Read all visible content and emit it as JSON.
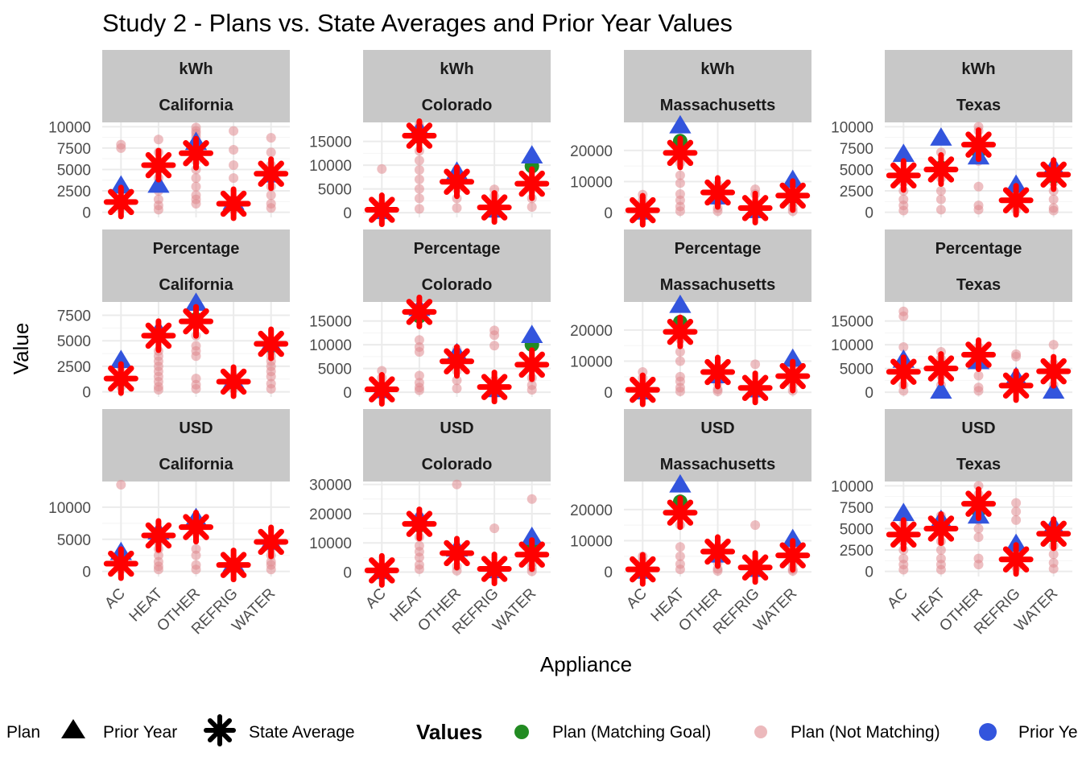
{
  "chart_data": {
    "type": "scatter",
    "title": "Study 2 - Plans vs. State Averages and Prior Year Values",
    "xlabel": "Appliance",
    "ylabel": "Value",
    "categories": [
      "AC",
      "HEAT",
      "OTHER",
      "REFRIG",
      "WATER"
    ],
    "colors": {
      "plan_matching": "#228b22",
      "plan_not_matching": "#e08a90",
      "prior_year": "#3355dd",
      "state_average": "#ff0000",
      "strip_background": "#c8c8c8"
    },
    "legend": {
      "shape": {
        "items": [
          "Plan",
          "Prior Year",
          "State Average"
        ]
      },
      "values": {
        "title": "Values",
        "items": [
          "Plan (Matching Goal)",
          "Plan (Not Matching)",
          "Prior Ye"
        ]
      },
      "placement": "bottom"
    },
    "grid": true,
    "panels": [
      {
        "metric": "kWh",
        "state": "California",
        "ylim": [
          -600,
          10500
        ],
        "yticks": [
          "0",
          "2500",
          "5000",
          "7500",
          "10000"
        ],
        "ytick_values": [
          0,
          2500,
          5000,
          7500,
          10000
        ],
        "state_average": [
          1200,
          5500,
          6900,
          1000,
          4500
        ],
        "prior_year": [
          3100,
          3200,
          8200,
          1200,
          4400
        ],
        "plan_matching": [
          1100,
          5400,
          7100,
          900,
          4400
        ],
        "plan_not_matching": [
          [
            7900,
            7500,
            1400,
            900,
            500
          ],
          [
            8500,
            7000,
            5000,
            4000,
            2500,
            1500,
            800,
            300
          ],
          [
            9900,
            9500,
            9200,
            8800,
            8000,
            6000,
            5000,
            4000,
            3000,
            2000,
            1500,
            1000
          ],
          [
            9500,
            7300,
            5500,
            4000,
            1500,
            300
          ],
          [
            8700,
            7000,
            5500,
            3000,
            2000,
            1000,
            500
          ]
        ]
      },
      {
        "metric": "kWh",
        "state": "Colorado",
        "ylim": [
          -1000,
          19000
        ],
        "yticks": [
          "0",
          "5000",
          "10000",
          "15000"
        ],
        "ytick_values": [
          0,
          5000,
          10000,
          15000
        ],
        "state_average": [
          600,
          16200,
          6500,
          1100,
          6100
        ],
        "prior_year": [
          300,
          17500,
          8600,
          600,
          12000
        ],
        "plan_matching": [
          700,
          16000,
          6400,
          1000,
          9800
        ],
        "plan_not_matching": [
          [
            9200,
            1800,
            800,
            200
          ],
          [
            18500,
            15500,
            13000,
            11000,
            9000,
            7000,
            5000,
            3000,
            800
          ],
          [
            9000,
            7000,
            5000,
            3000,
            1000
          ],
          [
            4900,
            3500,
            2000,
            1000,
            500
          ],
          [
            9000,
            7000,
            5000,
            3000,
            1200
          ]
        ]
      },
      {
        "metric": "kWh",
        "state": "Massachusetts",
        "ylim": [
          -1500,
          29000
        ],
        "yticks": [
          "0",
          "10000",
          "20000"
        ],
        "ytick_values": [
          0,
          10000,
          20000
        ],
        "state_average": [
          800,
          19200,
          6500,
          1500,
          5500
        ],
        "prior_year": [
          300,
          28000,
          5200,
          800,
          10500
        ],
        "plan_matching": [
          500,
          23000,
          6500,
          1300,
          5200
        ],
        "plan_not_matching": [
          [
            5800,
            4000,
            2500,
            1000,
            300
          ],
          [
            16000,
            12000,
            9500,
            6000,
            4000,
            2000,
            500
          ],
          [
            9000,
            6000,
            3500,
            1500,
            500
          ],
          [
            7500,
            6000,
            3000,
            1000
          ],
          [
            9000,
            6000,
            3000,
            1500,
            500
          ]
        ]
      },
      {
        "metric": "kWh",
        "state": "Texas",
        "ylim": [
          -600,
          10500
        ],
        "yticks": [
          "0",
          "2500",
          "5000",
          "7500",
          "10000"
        ],
        "ytick_values": [
          0,
          2500,
          5000,
          7500,
          10000
        ],
        "state_average": [
          4300,
          5000,
          7900,
          1400,
          4400
        ],
        "prior_year": [
          6800,
          8700,
          6500,
          3200,
          5300
        ],
        "plan_matching": [
          4300,
          5200,
          7100,
          1400,
          4200
        ],
        "plan_not_matching": [
          [
            6500,
            4500,
            3500,
            2500,
            1500,
            800,
            200
          ],
          [
            7000,
            5500,
            4000,
            2500,
            1500,
            300
          ],
          [
            10000,
            9500,
            8500,
            7500,
            6000,
            3000,
            800,
            300
          ],
          [
            2500,
            1500,
            800,
            300
          ],
          [
            5500,
            4500,
            3500,
            2500,
            1500,
            500,
            200
          ]
        ]
      },
      {
        "metric": "Percentage",
        "state": "California",
        "ylim": [
          -500,
          8800
        ],
        "yticks": [
          "0",
          "2500",
          "5000",
          "7500"
        ],
        "ytick_values": [
          0,
          2500,
          5000,
          7500
        ],
        "state_average": [
          1300,
          5500,
          6900,
          1000,
          4700
        ],
        "prior_year": [
          3100,
          6000,
          8700,
          1100,
          4700
        ],
        "plan_matching": [
          1200,
          5500,
          7100,
          900,
          4500
        ],
        "plan_not_matching": [
          [
            2500,
            1800,
            1000,
            500
          ],
          [
            4000,
            3500,
            3000,
            2500,
            2000,
            1500,
            1000,
            500,
            200
          ],
          [
            6500,
            5500,
            4500,
            4000,
            3500,
            1300,
            700,
            300
          ],
          [
            1500,
            800,
            300
          ],
          [
            4000,
            3500,
            3000,
            2500,
            2000,
            1500,
            800,
            300
          ]
        ]
      },
      {
        "metric": "Percentage",
        "state": "Colorado",
        "ylim": [
          -1000,
          19000
        ],
        "yticks": [
          "0",
          "5000",
          "10000",
          "15000"
        ],
        "ytick_values": [
          0,
          5000,
          10000,
          15000
        ],
        "state_average": [
          600,
          16900,
          6500,
          1100,
          5800
        ],
        "prior_year": [
          400,
          17700,
          8200,
          600,
          12000
        ],
        "plan_matching": [
          700,
          16000,
          6600,
          900,
          10000
        ],
        "plan_not_matching": [
          [
            4500,
            3000,
            1500,
            800,
            200
          ],
          [
            11000,
            9500,
            8500,
            3500,
            2000,
            1000,
            400
          ],
          [
            9000,
            6500,
            4500,
            2500,
            800
          ],
          [
            13000,
            12000,
            9800,
            2500,
            1000
          ],
          [
            3000,
            1500,
            500
          ]
        ]
      },
      {
        "metric": "Percentage",
        "state": "Massachusetts",
        "ylim": [
          -1500,
          29000
        ],
        "yticks": [
          "0",
          "10000",
          "20000"
        ],
        "ytick_values": [
          0,
          10000,
          20000
        ],
        "state_average": [
          800,
          19400,
          6500,
          1400,
          5200
        ],
        "prior_year": [
          200,
          28000,
          5400,
          900,
          10700
        ],
        "plan_matching": [
          700,
          22500,
          6500,
          1300,
          5200
        ],
        "plan_not_matching": [
          [
            6500,
            4500,
            2500,
            1000,
            300
          ],
          [
            17000,
            13000,
            10000,
            5000,
            3500,
            1500,
            300
          ],
          [
            8000,
            5500,
            3000,
            1000,
            300
          ],
          [
            9000,
            2000,
            500
          ],
          [
            7500,
            4500,
            2500,
            500
          ]
        ]
      },
      {
        "metric": "Percentage",
        "state": "Texas",
        "ylim": [
          -1000,
          19000
        ],
        "yticks": [
          "0",
          "5000",
          "10000",
          "15000"
        ],
        "ytick_values": [
          0,
          5000,
          10000,
          15000
        ],
        "state_average": [
          4300,
          5000,
          7900,
          1400,
          4400
        ],
        "prior_year": [
          6800,
          300,
          6500,
          3200,
          300
        ],
        "plan_matching": [
          4300,
          5200,
          7100,
          1400,
          4200
        ],
        "plan_not_matching": [
          [
            17000,
            16000,
            9500,
            5500,
            3500,
            1500,
            300
          ],
          [
            8500,
            7000,
            5500,
            3500,
            1500,
            500
          ],
          [
            9500,
            8000,
            6000,
            3500,
            1000,
            300
          ],
          [
            8000,
            7500,
            1500,
            500
          ],
          [
            10000,
            6000,
            3500,
            1500,
            500
          ]
        ]
      },
      {
        "metric": "USD",
        "state": "California",
        "ylim": [
          -800,
          14000
        ],
        "yticks": [
          "0",
          "5000",
          "10000"
        ],
        "ytick_values": [
          0,
          5000,
          10000
        ],
        "state_average": [
          1200,
          5600,
          6900,
          1000,
          4600
        ],
        "prior_year": [
          3000,
          6200,
          8300,
          1200,
          4600
        ],
        "plan_matching": [
          1200,
          5500,
          7200,
          900,
          4500
        ],
        "plan_not_matching": [
          [
            13500,
            2000,
            1000,
            300
          ],
          [
            4500,
            3500,
            2500,
            1500,
            800,
            300
          ],
          [
            8000,
            6000,
            3500,
            2500,
            1000,
            300
          ],
          [
            1500,
            800,
            300
          ],
          [
            5000,
            3500,
            2500,
            1500,
            1000,
            300
          ]
        ]
      },
      {
        "metric": "USD",
        "state": "Colorado",
        "ylim": [
          -1500,
          31000
        ],
        "yticks": [
          "0",
          "10000",
          "20000",
          "30000"
        ],
        "ytick_values": [
          0,
          10000,
          20000,
          30000
        ],
        "state_average": [
          600,
          16500,
          6500,
          1100,
          6000
        ],
        "prior_year": [
          300,
          18500,
          8000,
          600,
          12000
        ],
        "plan_matching": [
          700,
          16000,
          6600,
          900,
          10000
        ],
        "plan_not_matching": [
          [
            2000,
            800,
            200
          ],
          [
            15000,
            12000,
            9000,
            7000,
            5000,
            2500,
            1000
          ],
          [
            30000,
            8000,
            5000,
            2000,
            500
          ],
          [
            15000,
            2000,
            500
          ],
          [
            25000,
            9000,
            6000,
            3000,
            1500,
            300
          ]
        ]
      },
      {
        "metric": "USD",
        "state": "Massachusetts",
        "ylim": [
          -1500,
          29000
        ],
        "yticks": [
          "0",
          "10000",
          "20000"
        ],
        "ytick_values": [
          0,
          10000,
          20000
        ],
        "state_average": [
          800,
          19000,
          6500,
          1400,
          5300
        ],
        "prior_year": [
          300,
          28000,
          5500,
          900,
          10500
        ],
        "plan_matching": [
          700,
          22500,
          6500,
          1300,
          5200
        ],
        "plan_not_matching": [
          [
            5000,
            3500,
            2000,
            800,
            300
          ],
          [
            15000,
            8000,
            5000,
            2500,
            800
          ],
          [
            8000,
            5000,
            3000,
            1000,
            300
          ],
          [
            15000,
            3000,
            800
          ],
          [
            7500,
            5000,
            2500,
            800,
            300
          ]
        ]
      },
      {
        "metric": "USD",
        "state": "Texas",
        "ylim": [
          -600,
          10500
        ],
        "yticks": [
          "0",
          "2500",
          "5000",
          "7500",
          "10000"
        ],
        "ytick_values": [
          0,
          2500,
          5000,
          7500,
          10000
        ],
        "state_average": [
          4300,
          5000,
          7900,
          1400,
          4400
        ],
        "prior_year": [
          6800,
          6000,
          6500,
          3200,
          5300
        ],
        "plan_matching": [
          4300,
          5200,
          7100,
          1400,
          4200
        ],
        "plan_not_matching": [
          [
            5500,
            4500,
            3500,
            2500,
            1500,
            800,
            200
          ],
          [
            6500,
            5500,
            4500,
            3500,
            2500,
            1500,
            800,
            200
          ],
          [
            10000,
            9000,
            6000,
            5000,
            4000,
            1500,
            800
          ],
          [
            8000,
            7000,
            6000,
            3000,
            1500,
            500
          ],
          [
            5500,
            4000,
            3000,
            2000,
            1000,
            300
          ]
        ]
      }
    ]
  }
}
